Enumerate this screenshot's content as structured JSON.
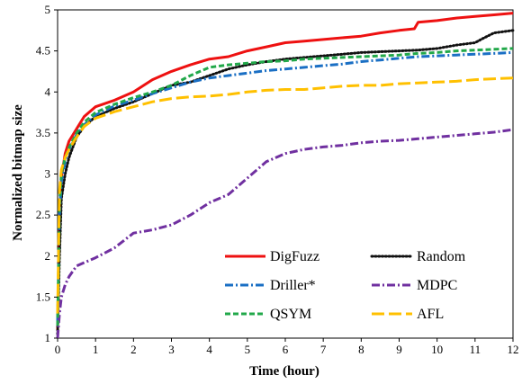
{
  "chart_data": {
    "type": "line",
    "xlabel": "Time (hour)",
    "ylabel": "Normalized bitmap size",
    "xlim": [
      0,
      12
    ],
    "ylim": [
      1,
      5
    ],
    "xticks": [
      "0",
      "1",
      "2",
      "3",
      "4",
      "5",
      "6",
      "7",
      "8",
      "9",
      "10",
      "11",
      "12"
    ],
    "yticks": [
      "1",
      "1.5",
      "2",
      "2.5",
      "3",
      "3.5",
      "4",
      "4.5",
      "5"
    ],
    "grid": false,
    "legend_position": "bottom-right",
    "series": [
      {
        "name": "DigFuzz",
        "color": "#ee1111",
        "style": "solid",
        "x": [
          0,
          0.05,
          0.1,
          0.2,
          0.3,
          0.5,
          0.7,
          1,
          1.5,
          2,
          2.5,
          3,
          3.5,
          4,
          4.5,
          5,
          5.5,
          6,
          6.5,
          7,
          7.5,
          8,
          8.5,
          9,
          9.4,
          9.5,
          10,
          10.5,
          11,
          11.5,
          12
        ],
        "y": [
          1.1,
          2.3,
          2.95,
          3.25,
          3.4,
          3.55,
          3.7,
          3.82,
          3.9,
          4.0,
          4.15,
          4.25,
          4.33,
          4.4,
          4.43,
          4.5,
          4.55,
          4.6,
          4.62,
          4.64,
          4.66,
          4.68,
          4.72,
          4.75,
          4.77,
          4.85,
          4.87,
          4.9,
          4.92,
          4.94,
          4.96
        ]
      },
      {
        "name": "Random",
        "color": "#111111",
        "style": "dotted",
        "x": [
          0,
          0.05,
          0.1,
          0.2,
          0.3,
          0.5,
          0.7,
          1,
          1.5,
          2,
          2.5,
          3,
          3.5,
          4,
          4.5,
          5,
          5.5,
          6,
          6.5,
          7,
          7.5,
          8,
          8.5,
          9,
          9.5,
          10,
          10.5,
          11,
          11.2,
          11.5,
          12
        ],
        "y": [
          1.05,
          2.0,
          2.7,
          3.0,
          3.2,
          3.45,
          3.58,
          3.7,
          3.8,
          3.88,
          3.98,
          4.08,
          4.12,
          4.2,
          4.28,
          4.33,
          4.37,
          4.4,
          4.42,
          4.44,
          4.46,
          4.48,
          4.49,
          4.5,
          4.51,
          4.53,
          4.57,
          4.6,
          4.65,
          4.72,
          4.75
        ]
      },
      {
        "name": "Driller*",
        "color": "#1a6fc4",
        "style": "dash-dot",
        "x": [
          0,
          0.05,
          0.1,
          0.2,
          0.3,
          0.5,
          0.7,
          1,
          1.5,
          2,
          2.5,
          3,
          3.5,
          4,
          4.5,
          5,
          5.5,
          6,
          6.5,
          7,
          7.5,
          8,
          8.5,
          9,
          9.5,
          10,
          10.5,
          11,
          11.5,
          12
        ],
        "y": [
          1.2,
          2.5,
          2.9,
          3.15,
          3.3,
          3.48,
          3.6,
          3.72,
          3.83,
          3.9,
          3.98,
          4.05,
          4.12,
          4.17,
          4.2,
          4.23,
          4.26,
          4.28,
          4.3,
          4.32,
          4.34,
          4.37,
          4.39,
          4.41,
          4.43,
          4.44,
          4.45,
          4.46,
          4.47,
          4.48
        ]
      },
      {
        "name": "MDPC",
        "color": "#7030a0",
        "style": "dash-dot",
        "x": [
          0,
          0.05,
          0.1,
          0.2,
          0.3,
          0.5,
          1,
          1.5,
          2,
          2.5,
          3,
          3.5,
          4,
          4.5,
          5,
          5.5,
          6,
          6.5,
          7,
          7.5,
          8,
          8.5,
          9,
          9.5,
          10,
          10.5,
          11,
          11.5,
          12
        ],
        "y": [
          1.0,
          1.3,
          1.5,
          1.65,
          1.75,
          1.88,
          1.98,
          2.1,
          2.28,
          2.32,
          2.38,
          2.5,
          2.65,
          2.75,
          2.95,
          3.15,
          3.25,
          3.3,
          3.33,
          3.35,
          3.38,
          3.4,
          3.41,
          3.43,
          3.45,
          3.47,
          3.49,
          3.51,
          3.54
        ]
      },
      {
        "name": "QSYM",
        "color": "#22a84a",
        "style": "dashed",
        "x": [
          0,
          0.05,
          0.1,
          0.2,
          0.3,
          0.5,
          0.7,
          1,
          1.5,
          2,
          2.5,
          3,
          3.5,
          4,
          4.5,
          5,
          5.5,
          6,
          6.5,
          7,
          7.5,
          8,
          8.5,
          9,
          9.5,
          10,
          10.5,
          11,
          11.5,
          12
        ],
        "y": [
          1.15,
          2.6,
          3.0,
          3.2,
          3.32,
          3.5,
          3.63,
          3.75,
          3.85,
          3.93,
          4.0,
          4.08,
          4.2,
          4.3,
          4.33,
          4.35,
          4.37,
          4.38,
          4.4,
          4.41,
          4.42,
          4.43,
          4.44,
          4.45,
          4.47,
          4.48,
          4.5,
          4.51,
          4.52,
          4.53
        ]
      },
      {
        "name": "AFL",
        "color": "#ffc000",
        "style": "long-dash",
        "x": [
          0,
          0.05,
          0.1,
          0.2,
          0.3,
          0.5,
          0.7,
          1,
          1.5,
          2,
          2.5,
          3,
          3.5,
          4,
          4.5,
          5,
          5.5,
          6,
          6.5,
          7,
          7.5,
          8,
          8.5,
          9,
          9.5,
          10,
          10.5,
          11,
          11.5,
          12
        ],
        "y": [
          1.3,
          2.8,
          3.05,
          3.2,
          3.3,
          3.45,
          3.58,
          3.68,
          3.76,
          3.82,
          3.88,
          3.92,
          3.94,
          3.95,
          3.97,
          4.0,
          4.02,
          4.03,
          4.03,
          4.05,
          4.07,
          4.08,
          4.08,
          4.1,
          4.11,
          4.12,
          4.13,
          4.15,
          4.16,
          4.17
        ]
      }
    ]
  }
}
